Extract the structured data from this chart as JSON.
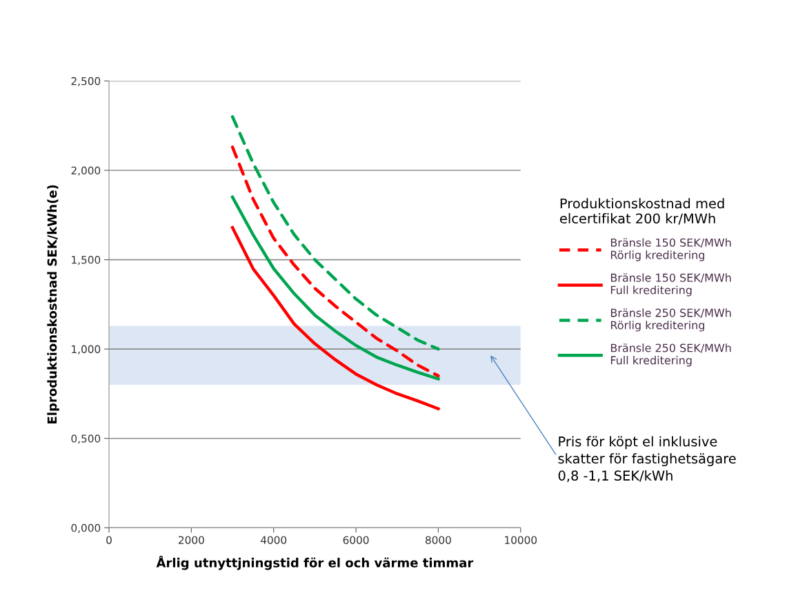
{
  "chart_data": {
    "type": "line",
    "xlabel": "Årlig utnyttjningstid för el och värme timmar",
    "ylabel": "Elproduktionskostnad SEK/kWh(e)",
    "legend_title": "Produktionskostnad med\nelcertifikat 200 kr/MWh",
    "x": [
      3000,
      3500,
      4000,
      4500,
      5000,
      5500,
      6000,
      6500,
      7000,
      7500,
      8000
    ],
    "series": [
      {
        "name": "Bränsle 150 SEK/MWh\nRörlig kreditering",
        "color": "#ff0000",
        "line_style": "dashed",
        "values": [
          2.13,
          1.84,
          1.62,
          1.47,
          1.34,
          1.24,
          1.15,
          1.06,
          0.99,
          0.91,
          0.85
        ]
      },
      {
        "name": "Bränsle 150 SEK/MWh\nFull kreditering",
        "color": "#ff0000",
        "line_style": "solid",
        "values": [
          1.68,
          1.45,
          1.3,
          1.14,
          1.03,
          0.94,
          0.86,
          0.8,
          0.75,
          0.71,
          0.666
        ]
      },
      {
        "name": "Bränsle 250 SEK/MWh\nRörlig kreditering",
        "color": "#00a550",
        "line_style": "dashed",
        "values": [
          2.3,
          2.04,
          1.82,
          1.64,
          1.5,
          1.39,
          1.28,
          1.19,
          1.12,
          1.05,
          1.0
        ]
      },
      {
        "name": "Bränsle 250 SEK/MWh\nFull kreditering",
        "color": "#00a550",
        "line_style": "solid",
        "values": [
          1.85,
          1.64,
          1.45,
          1.31,
          1.19,
          1.1,
          1.02,
          0.955,
          0.91,
          0.87,
          0.833
        ]
      }
    ],
    "xlim": [
      0,
      10000
    ],
    "xticks": [
      0,
      2000,
      4000,
      6000,
      8000,
      10000
    ],
    "ylim": [
      0,
      2.5
    ],
    "yticks": [
      {
        "value": 0,
        "label": "0,000"
      },
      {
        "value": 0.5,
        "label": "0,500"
      },
      {
        "value": 1.0,
        "label": "1,000"
      },
      {
        "value": 1.5,
        "label": "1,500"
      },
      {
        "value": 2.0,
        "label": "2,000"
      },
      {
        "value": 2.5,
        "label": "2,500"
      }
    ],
    "grid": "y",
    "legend": "right",
    "marker": "none",
    "bands": [
      {
        "axis": "y",
        "from": 0.8,
        "to": 1.13,
        "color": "#dce6f4"
      }
    ],
    "annotations": [
      "Pris för köpt el inklusive\nskatter för fastighetsägare\n0,8 -1,1 SEK/kWh"
    ]
  }
}
